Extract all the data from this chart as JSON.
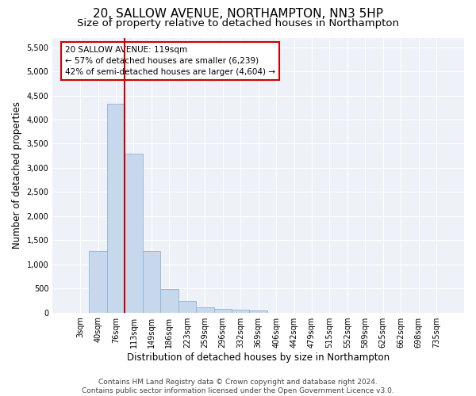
{
  "title": "20, SALLOW AVENUE, NORTHAMPTON, NN3 5HP",
  "subtitle": "Size of property relative to detached houses in Northampton",
  "xlabel": "Distribution of detached houses by size in Northampton",
  "ylabel": "Number of detached properties",
  "footnote1": "Contains HM Land Registry data © Crown copyright and database right 2024.",
  "footnote2": "Contains public sector information licensed under the Open Government Licence v3.0.",
  "bar_labels": [
    "3sqm",
    "40sqm",
    "76sqm",
    "113sqm",
    "149sqm",
    "186sqm",
    "223sqm",
    "259sqm",
    "296sqm",
    "332sqm",
    "369sqm",
    "406sqm",
    "442sqm",
    "479sqm",
    "515sqm",
    "552sqm",
    "589sqm",
    "625sqm",
    "662sqm",
    "698sqm",
    "735sqm"
  ],
  "bar_values": [
    0,
    1270,
    4330,
    3300,
    1280,
    480,
    240,
    100,
    70,
    55,
    50,
    0,
    0,
    0,
    0,
    0,
    0,
    0,
    0,
    0,
    0
  ],
  "bar_color": "#c8d8ec",
  "bar_edge_color": "#8eb4d4",
  "vline_index": 3,
  "vline_color": "#cc0000",
  "annotation_text": "20 SALLOW AVENUE: 119sqm\n← 57% of detached houses are smaller (6,239)\n42% of semi-detached houses are larger (4,604) →",
  "annotation_box_facecolor": "#ffffff",
  "annotation_box_edgecolor": "#cc0000",
  "ylim": [
    0,
    5700
  ],
  "yticks": [
    0,
    500,
    1000,
    1500,
    2000,
    2500,
    3000,
    3500,
    4000,
    4500,
    5000,
    5500
  ],
  "fig_bg_color": "#ffffff",
  "plot_bg_color": "#eef2f8",
  "grid_color": "#ffffff",
  "title_fontsize": 11,
  "subtitle_fontsize": 9.5,
  "label_fontsize": 8.5,
  "tick_fontsize": 7,
  "annot_fontsize": 7.5,
  "footnote_fontsize": 6.5
}
